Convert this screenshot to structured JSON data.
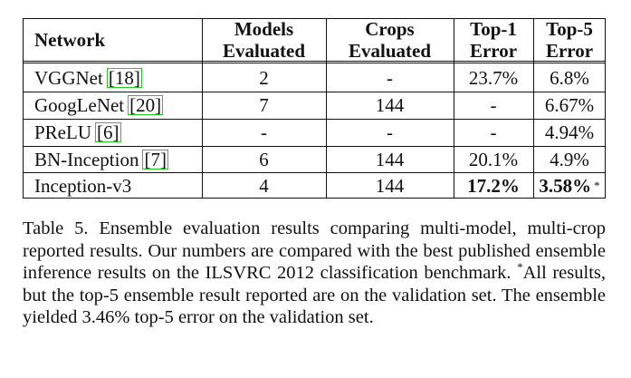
{
  "table": {
    "headers": {
      "network": "Network",
      "models_line1": "Models",
      "models_line2": "Evaluated",
      "crops_line1": "Crops",
      "crops_line2": "Evaluated",
      "top1_line1": "Top-1",
      "top1_line2": "Error",
      "top5_line1": "Top-5",
      "top5_line2": "Error"
    },
    "rows": [
      {
        "network": "VGGNet",
        "cite": "18",
        "models": "2",
        "crops": "-",
        "top1": "23.7%",
        "top5": "6.8%"
      },
      {
        "network": "GoogLeNet",
        "cite": "20",
        "models": "7",
        "crops": "144",
        "top1": "-",
        "top5": "6.67%"
      },
      {
        "network": "PReLU",
        "cite": "6",
        "models": "-",
        "crops": "-",
        "top1": "-",
        "top5": "4.94%"
      },
      {
        "network": "BN-Inception",
        "cite": "7",
        "models": "6",
        "crops": "144",
        "top1": "20.1%",
        "top5": "4.9%"
      },
      {
        "network": "Inception-v3",
        "cite": "",
        "models": "4",
        "crops": "144",
        "top1": "17.2%",
        "top5": "3.58%",
        "top5_sup": "*"
      }
    ]
  },
  "caption": {
    "label": "Table 5.",
    "text_part1": "Ensemble evaluation results comparing multi-model, multi-crop reported results. Our numbers are compared with the best published ensemble inference results on the ILSVRC 2012 classification benchmark. ",
    "star": "*",
    "text_part2": "All results, but the top-5 ensemble result reported are on the validation set. The ensemble yielded 3.46% top-5 error on the validation set."
  }
}
